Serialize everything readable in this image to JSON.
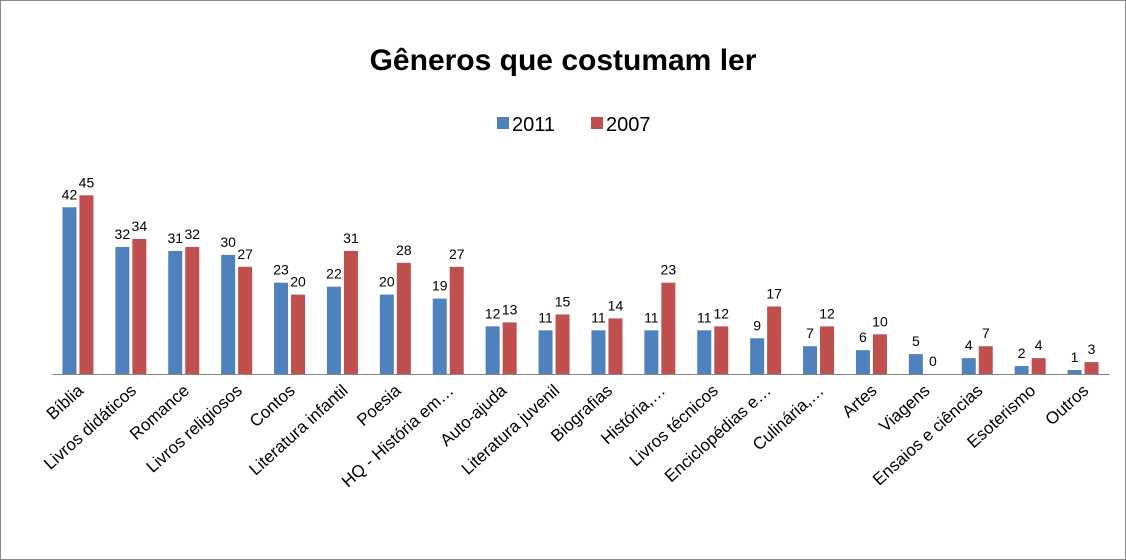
{
  "chart_data": {
    "type": "bar",
    "title": "Gêneros que costumam ler",
    "categories": [
      "Bíblia",
      "Livros didáticos",
      "Romance",
      "Livros religiosos",
      "Contos",
      "Literatura infantil",
      "Poesia",
      "HQ - História em…",
      "Auto-ajuda",
      "Literatura juvenil",
      "Biografias",
      "História,…",
      "Livros técnicos",
      "Enciclopédias e…",
      "Culinária,…",
      "Artes",
      "Viagens",
      "Ensaios e ciências",
      "Esoterismo",
      "Outros"
    ],
    "series": [
      {
        "name": "2011",
        "color": "#4f81bd",
        "values": [
          42,
          32,
          31,
          30,
          23,
          22,
          20,
          19,
          12,
          11,
          11,
          11,
          11,
          9,
          7,
          6,
          5,
          4,
          2,
          1
        ]
      },
      {
        "name": "2007",
        "color": "#c0504d",
        "values": [
          45,
          34,
          32,
          27,
          20,
          31,
          28,
          27,
          13,
          15,
          14,
          23,
          12,
          17,
          12,
          10,
          0,
          7,
          4,
          3
        ]
      }
    ],
    "ylim": [
      0,
      50
    ]
  }
}
